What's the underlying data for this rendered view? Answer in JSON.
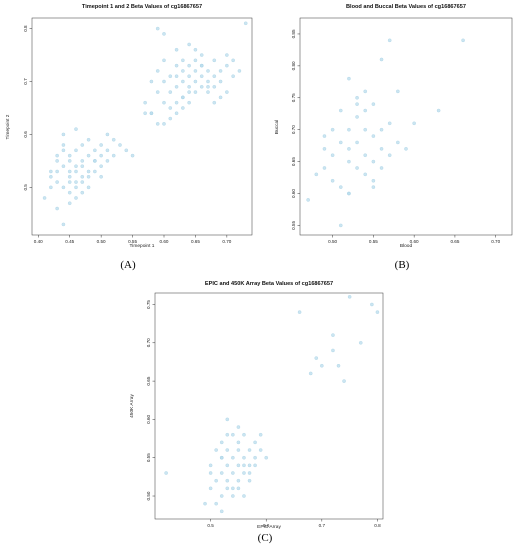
{
  "chart_data": [
    {
      "type": "scatter",
      "panel_label": "(A)",
      "title": "Timepoint 1 and 2 Beta Values of cg16867657",
      "xlabel": "Timepoint 1",
      "ylabel": "Timepoint 2",
      "xlim": [
        0.39,
        0.74
      ],
      "ylim": [
        0.41,
        0.82
      ],
      "xticks": [
        "0.40",
        "0.45",
        "0.50",
        "0.55",
        "0.60",
        "0.65",
        "0.70"
      ],
      "xtick_values": [
        0.4,
        0.45,
        0.5,
        0.55,
        0.6,
        0.65,
        0.7
      ],
      "yticks": [
        "0.5",
        "0.6",
        "0.7",
        "0.8"
      ],
      "ytick_values": [
        0.5,
        0.6,
        0.7,
        0.8
      ],
      "color": "#b9dcec",
      "x": [
        0.41,
        0.42,
        0.42,
        0.43,
        0.43,
        0.43,
        0.44,
        0.44,
        0.44,
        0.44,
        0.45,
        0.45,
        0.45,
        0.45,
        0.45,
        0.46,
        0.46,
        0.46,
        0.46,
        0.46,
        0.47,
        0.47,
        0.47,
        0.47,
        0.47,
        0.48,
        0.48,
        0.48,
        0.48,
        0.49,
        0.49,
        0.49,
        0.5,
        0.5,
        0.5,
        0.51,
        0.51,
        0.52,
        0.52,
        0.53,
        0.54,
        0.55,
        0.44,
        0.45,
        0.43,
        0.46,
        0.48,
        0.5,
        0.42,
        0.44,
        0.47,
        0.49,
        0.45,
        0.43,
        0.46,
        0.51,
        0.57,
        0.58,
        0.58,
        0.59,
        0.59,
        0.59,
        0.6,
        0.6,
        0.6,
        0.61,
        0.61,
        0.61,
        0.62,
        0.62,
        0.62,
        0.62,
        0.63,
        0.63,
        0.63,
        0.63,
        0.64,
        0.64,
        0.64,
        0.64,
        0.65,
        0.65,
        0.65,
        0.65,
        0.66,
        0.66,
        0.66,
        0.67,
        0.67,
        0.67,
        0.68,
        0.68,
        0.68,
        0.69,
        0.69,
        0.7,
        0.7,
        0.71,
        0.71,
        0.72,
        0.73,
        0.58,
        0.6,
        0.62,
        0.64,
        0.66,
        0.68,
        0.61,
        0.63,
        0.65,
        0.67,
        0.59,
        0.69,
        0.6,
        0.62,
        0.64,
        0.66,
        0.7,
        0.57,
        0.63
      ],
      "y": [
        0.48,
        0.52,
        0.5,
        0.51,
        0.55,
        0.53,
        0.54,
        0.5,
        0.57,
        0.6,
        0.52,
        0.55,
        0.53,
        0.49,
        0.56,
        0.51,
        0.54,
        0.57,
        0.53,
        0.5,
        0.55,
        0.52,
        0.58,
        0.54,
        0.51,
        0.53,
        0.56,
        0.59,
        0.52,
        0.55,
        0.57,
        0.53,
        0.56,
        0.54,
        0.58,
        0.55,
        0.57,
        0.56,
        0.59,
        0.58,
        0.57,
        0.56,
        0.43,
        0.47,
        0.46,
        0.61,
        0.5,
        0.52,
        0.53,
        0.58,
        0.49,
        0.55,
        0.51,
        0.56,
        0.48,
        0.6,
        0.66,
        0.7,
        0.64,
        0.68,
        0.72,
        0.8,
        0.66,
        0.7,
        0.74,
        0.68,
        0.71,
        0.65,
        0.69,
        0.73,
        0.66,
        0.76,
        0.7,
        0.67,
        0.72,
        0.74,
        0.69,
        0.73,
        0.71,
        0.66,
        0.72,
        0.7,
        0.74,
        0.68,
        0.73,
        0.71,
        0.75,
        0.7,
        0.72,
        0.68,
        0.71,
        0.74,
        0.69,
        0.72,
        0.7,
        0.73,
        0.75,
        0.71,
        0.74,
        0.72,
        0.81,
        0.64,
        0.62,
        0.64,
        0.68,
        0.69,
        0.66,
        0.63,
        0.67,
        0.76,
        0.69,
        0.62,
        0.67,
        0.79,
        0.71,
        0.77,
        0.73,
        0.68,
        0.64,
        0.65
      ]
    },
    {
      "type": "scatter",
      "panel_label": "(B)",
      "title": "Blood and Buccal Beta Values of cg16867657",
      "xlabel": "Blood",
      "ylabel": "Buccal",
      "xlim": [
        0.46,
        0.72
      ],
      "ylim": [
        0.535,
        0.875
      ],
      "xticks": [
        "0.50",
        "0.55",
        "0.60",
        "0.65",
        "0.70"
      ],
      "xtick_values": [
        0.5,
        0.55,
        0.6,
        0.65,
        0.7
      ],
      "yticks": [
        "0.55",
        "0.60",
        "0.65",
        "0.70",
        "0.75",
        "0.80",
        "0.85"
      ],
      "ytick_values": [
        0.55,
        0.6,
        0.65,
        0.7,
        0.75,
        0.8,
        0.85
      ],
      "color": "#b9dcec",
      "x": [
        0.47,
        0.48,
        0.49,
        0.49,
        0.5,
        0.5,
        0.51,
        0.51,
        0.51,
        0.52,
        0.52,
        0.52,
        0.52,
        0.53,
        0.53,
        0.53,
        0.53,
        0.54,
        0.54,
        0.54,
        0.54,
        0.55,
        0.55,
        0.55,
        0.55,
        0.56,
        0.56,
        0.56,
        0.57,
        0.57,
        0.58,
        0.58,
        0.59,
        0.6,
        0.63,
        0.66,
        0.5,
        0.52,
        0.55,
        0.57,
        0.53,
        0.56,
        0.51,
        0.54,
        0.52,
        0.49
      ],
      "y": [
        0.59,
        0.63,
        0.64,
        0.67,
        0.62,
        0.66,
        0.73,
        0.68,
        0.61,
        0.6,
        0.65,
        0.78,
        0.7,
        0.75,
        0.68,
        0.64,
        0.72,
        0.63,
        0.7,
        0.66,
        0.76,
        0.69,
        0.74,
        0.65,
        0.62,
        0.81,
        0.7,
        0.67,
        0.71,
        0.84,
        0.68,
        0.76,
        0.67,
        0.71,
        0.73,
        0.84,
        0.7,
        0.6,
        0.61,
        0.66,
        0.74,
        0.64,
        0.55,
        0.73,
        0.67,
        0.69
      ]
    },
    {
      "type": "scatter",
      "panel_label": "(C)",
      "title": "EPIC and 450K Array Beta Values of cg16867657",
      "xlabel": "EPIC Array",
      "ylabel": "450K Array",
      "xlim": [
        0.4,
        0.81
      ],
      "ylim": [
        0.47,
        0.765
      ],
      "xticks": [
        "0.5",
        "0.6",
        "0.7",
        "0.8"
      ],
      "xtick_values": [
        0.5,
        0.6,
        0.7,
        0.8
      ],
      "yticks": [
        "0.50",
        "0.55",
        "0.60",
        "0.65",
        "0.70",
        "0.75"
      ],
      "ytick_values": [
        0.5,
        0.55,
        0.6,
        0.65,
        0.7,
        0.75
      ],
      "color": "#b9dcec",
      "x": [
        0.42,
        0.49,
        0.5,
        0.5,
        0.51,
        0.51,
        0.52,
        0.52,
        0.52,
        0.52,
        0.53,
        0.53,
        0.53,
        0.53,
        0.54,
        0.54,
        0.54,
        0.55,
        0.55,
        0.55,
        0.55,
        0.56,
        0.56,
        0.56,
        0.57,
        0.57,
        0.57,
        0.58,
        0.58,
        0.59,
        0.59,
        0.6,
        0.51,
        0.53,
        0.55,
        0.57,
        0.52,
        0.54,
        0.56,
        0.5,
        0.53,
        0.55,
        0.58,
        0.54,
        0.52,
        0.56,
        0.66,
        0.68,
        0.69,
        0.7,
        0.72,
        0.72,
        0.73,
        0.74,
        0.75,
        0.77,
        0.79,
        0.8
      ],
      "y": [
        0.53,
        0.49,
        0.51,
        0.54,
        0.52,
        0.56,
        0.5,
        0.53,
        0.57,
        0.55,
        0.52,
        0.54,
        0.58,
        0.6,
        0.51,
        0.55,
        0.53,
        0.54,
        0.57,
        0.52,
        0.56,
        0.55,
        0.53,
        0.58,
        0.54,
        0.56,
        0.52,
        0.55,
        0.57,
        0.56,
        0.58,
        0.55,
        0.49,
        0.51,
        0.59,
        0.53,
        0.48,
        0.5,
        0.54,
        0.53,
        0.56,
        0.51,
        0.54,
        0.58,
        0.55,
        0.5,
        0.74,
        0.66,
        0.68,
        0.67,
        0.69,
        0.71,
        0.67,
        0.65,
        0.76,
        0.7,
        0.75,
        0.74
      ]
    }
  ]
}
